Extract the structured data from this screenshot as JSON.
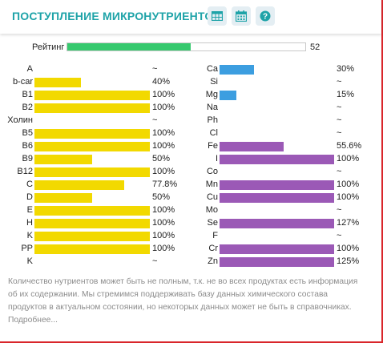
{
  "header": {
    "title": "ПОСТУПЛЕНИЕ МИКРОНУТРИЕНТОВ",
    "icons": [
      "table-icon",
      "calendar-icon",
      "help-icon"
    ],
    "title_color": "#1ea3a8"
  },
  "rating": {
    "label": "Рейтинг",
    "value": "52",
    "fraction": 0.52,
    "color": "#36c96e"
  },
  "colors": {
    "vitamin_bar": "#f2d900",
    "mineral_bar_blue": "#3c9ee0",
    "mineral_bar_purple": "#9b59b6"
  },
  "vitamins": [
    {
      "name": "A",
      "value": "~",
      "fraction": 0
    },
    {
      "name": "b-car",
      "value": "40%",
      "fraction": 0.4
    },
    {
      "name": "B1",
      "value": "100%",
      "fraction": 1
    },
    {
      "name": "B2",
      "value": "100%",
      "fraction": 1
    },
    {
      "name": "Холин",
      "value": "~",
      "fraction": 0
    },
    {
      "name": "B5",
      "value": "100%",
      "fraction": 1
    },
    {
      "name": "B6",
      "value": "100%",
      "fraction": 1
    },
    {
      "name": "B9",
      "value": "50%",
      "fraction": 0.5
    },
    {
      "name": "B12",
      "value": "100%",
      "fraction": 1
    },
    {
      "name": "C",
      "value": "77.8%",
      "fraction": 0.778
    },
    {
      "name": "D",
      "value": "50%",
      "fraction": 0.5
    },
    {
      "name": "E",
      "value": "100%",
      "fraction": 1
    },
    {
      "name": "H",
      "value": "100%",
      "fraction": 1
    },
    {
      "name": "K",
      "value": "100%",
      "fraction": 1
    },
    {
      "name": "PP",
      "value": "100%",
      "fraction": 1
    },
    {
      "name": "K",
      "value": "~",
      "fraction": 0
    }
  ],
  "minerals": [
    {
      "name": "Ca",
      "value": "30%",
      "fraction": 0.3,
      "color": "blue"
    },
    {
      "name": "Si",
      "value": "~",
      "fraction": 0
    },
    {
      "name": "Mg",
      "value": "15%",
      "fraction": 0.15,
      "color": "blue"
    },
    {
      "name": "Na",
      "value": "~",
      "fraction": 0
    },
    {
      "name": "Ph",
      "value": "~",
      "fraction": 0
    },
    {
      "name": "Cl",
      "value": "~",
      "fraction": 0
    },
    {
      "name": "Fe",
      "value": "55.6%",
      "fraction": 0.556,
      "color": "purple"
    },
    {
      "name": "I",
      "value": "100%",
      "fraction": 1,
      "color": "purple"
    },
    {
      "name": "Co",
      "value": "~",
      "fraction": 0
    },
    {
      "name": "Mn",
      "value": "100%",
      "fraction": 1,
      "color": "purple"
    },
    {
      "name": "Cu",
      "value": "100%",
      "fraction": 1,
      "color": "purple"
    },
    {
      "name": "Mo",
      "value": "~",
      "fraction": 0
    },
    {
      "name": "Se",
      "value": "127%",
      "fraction": 1,
      "color": "purple"
    },
    {
      "name": "F",
      "value": "~",
      "fraction": 0
    },
    {
      "name": "Cr",
      "value": "100%",
      "fraction": 1,
      "color": "purple"
    },
    {
      "name": "Zn",
      "value": "125%",
      "fraction": 1,
      "color": "purple"
    }
  ],
  "note": {
    "text": "Количество нутриентов может быть не полным, т.к. не во всех продуктах есть информация об их содержании. Мы стремимся поддерживать базу данных химического состава продуктов в актуальном состоянии, но некоторых данных может не быть в справочниках.",
    "more_link": "Подробнее..."
  }
}
